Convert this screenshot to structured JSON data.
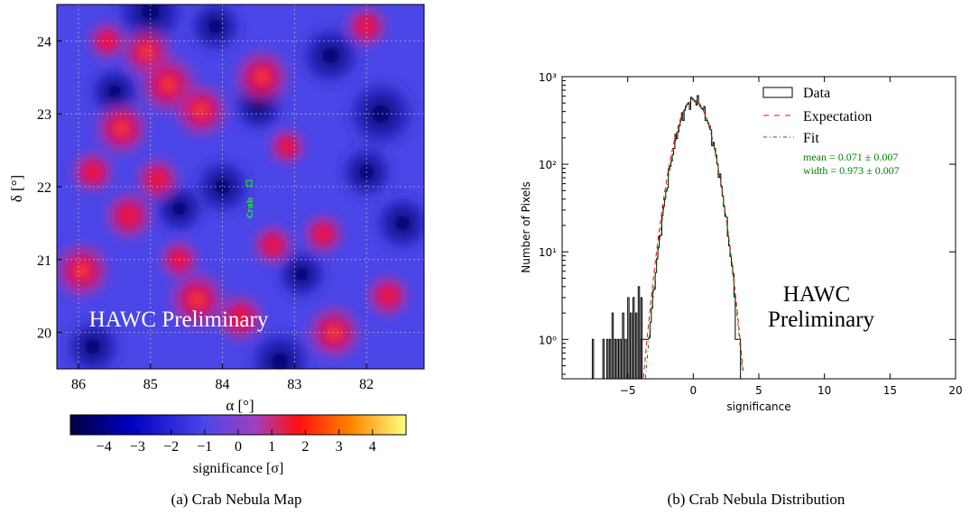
{
  "chart_data": [
    {
      "type": "heatmap",
      "caption": "(a) Crab Nebula Map",
      "xlabel": "α [°]",
      "ylabel": "δ [°]",
      "xlim": [
        86.3,
        81.2
      ],
      "ylim": [
        19.5,
        24.5
      ],
      "xticks": [
        86,
        85,
        84,
        83,
        82
      ],
      "yticks": [
        20,
        21,
        22,
        23,
        24
      ],
      "grid": true,
      "annotation": "HAWC Preliminary",
      "source": {
        "label": "Crab",
        "ra": 83.63,
        "dec": 22.01,
        "color": "#22dd22"
      },
      "colorbar": {
        "label": "significance [σ]",
        "range": [
          -5,
          5
        ],
        "ticks": [
          -4,
          -3,
          -2,
          -1,
          0,
          1,
          2,
          3,
          4
        ],
        "colors": [
          "#000040",
          "#0000c0",
          "#4a46e8",
          "#a040c0",
          "#ff1010",
          "#ff8800",
          "#ffff80"
        ]
      },
      "hotspots": [
        {
          "ra": 85.05,
          "dec": 23.85,
          "value": 2.8
        },
        {
          "ra": 84.75,
          "dec": 23.4,
          "value": 3.4
        },
        {
          "ra": 84.3,
          "dec": 23.05,
          "value": 3.0
        },
        {
          "ra": 85.4,
          "dec": 22.8,
          "value": 3.0
        },
        {
          "ra": 83.45,
          "dec": 23.5,
          "value": 3.2
        },
        {
          "ra": 85.3,
          "dec": 21.6,
          "value": 2.5
        },
        {
          "ra": 85.95,
          "dec": 20.85,
          "value": 3.2
        },
        {
          "ra": 84.35,
          "dec": 20.45,
          "value": 3.3
        },
        {
          "ra": 83.75,
          "dec": 20.2,
          "value": 2.4
        },
        {
          "ra": 82.45,
          "dec": 20.0,
          "value": 3.0
        },
        {
          "ra": 82.6,
          "dec": 21.35,
          "value": 1.8
        },
        {
          "ra": 83.1,
          "dec": 22.55,
          "value": 1.5
        },
        {
          "ra": 85.6,
          "dec": 24.0,
          "value": 1.6
        },
        {
          "ra": 82.0,
          "dec": 24.2,
          "value": 1.9
        },
        {
          "ra": 85.8,
          "dec": 22.2,
          "value": 2.0
        },
        {
          "ra": 84.9,
          "dec": 22.1,
          "value": 2.1
        },
        {
          "ra": 83.3,
          "dec": 21.2,
          "value": 1.8
        },
        {
          "ra": 81.7,
          "dec": 20.5,
          "value": 2.0
        },
        {
          "ra": 84.6,
          "dec": 21.0,
          "value": 1.7
        }
      ],
      "coldspots": [
        {
          "ra": 85.0,
          "dec": 24.4,
          "value": -3.5
        },
        {
          "ra": 84.0,
          "dec": 22.0,
          "value": -2.5
        },
        {
          "ra": 81.8,
          "dec": 23.0,
          "value": -3.5
        },
        {
          "ra": 82.5,
          "dec": 23.8,
          "value": -2.8
        },
        {
          "ra": 83.2,
          "dec": 19.6,
          "value": -3.0
        },
        {
          "ra": 81.5,
          "dec": 21.5,
          "value": -2.5
        },
        {
          "ra": 85.8,
          "dec": 19.8,
          "value": -2.5
        },
        {
          "ra": 84.6,
          "dec": 21.7,
          "value": -2.0
        },
        {
          "ra": 83.5,
          "dec": 23.1,
          "value": -2.0
        },
        {
          "ra": 85.5,
          "dec": 23.3,
          "value": -2.0
        },
        {
          "ra": 82.9,
          "dec": 20.8,
          "value": -2.0
        },
        {
          "ra": 82.0,
          "dec": 22.2,
          "value": -2.2
        },
        {
          "ra": 84.1,
          "dec": 24.2,
          "value": -2.2
        }
      ]
    },
    {
      "type": "histogram",
      "caption": "(b) Crab Nebula Distribution",
      "xlabel": "significance",
      "ylabel": "Number of Pixels",
      "xlim": [
        -10,
        20
      ],
      "ylim_log10": [
        -0.45,
        3.0
      ],
      "xticks": [
        -5,
        0,
        5,
        10,
        15,
        20
      ],
      "yticks": [
        "10⁰",
        "10¹",
        "10²",
        "10³"
      ],
      "legend": [
        "Data",
        "Expectation",
        "Fit"
      ],
      "legend_placement": "top-right",
      "series_colors": {
        "data": "#000000",
        "expectation": "#ff0000",
        "fit": "#008000"
      },
      "fit_text": [
        "mean = 0.071 ± 0.007",
        "width = 0.973 ± 0.007"
      ],
      "annotation": [
        "HAWC",
        "Preliminary"
      ],
      "gaussian": {
        "peak": 540,
        "mean": 0.071,
        "sigma": 0.973
      },
      "outliers": [
        {
          "x": -7.7,
          "y": 1
        },
        {
          "x": -6.9,
          "y": 1
        },
        {
          "x": -6.6,
          "y": 1
        },
        {
          "x": -6.4,
          "y": 1
        },
        {
          "x": -6.2,
          "y": 2
        },
        {
          "x": -6.0,
          "y": 1
        },
        {
          "x": -5.8,
          "y": 1
        },
        {
          "x": -5.6,
          "y": 1
        },
        {
          "x": -5.4,
          "y": 2
        },
        {
          "x": -5.2,
          "y": 1
        },
        {
          "x": -5.0,
          "y": 3
        },
        {
          "x": -4.8,
          "y": 2
        },
        {
          "x": -4.6,
          "y": 3
        },
        {
          "x": -4.4,
          "y": 2
        },
        {
          "x": -4.2,
          "y": 4
        },
        {
          "x": -4.0,
          "y": 3
        }
      ]
    }
  ]
}
